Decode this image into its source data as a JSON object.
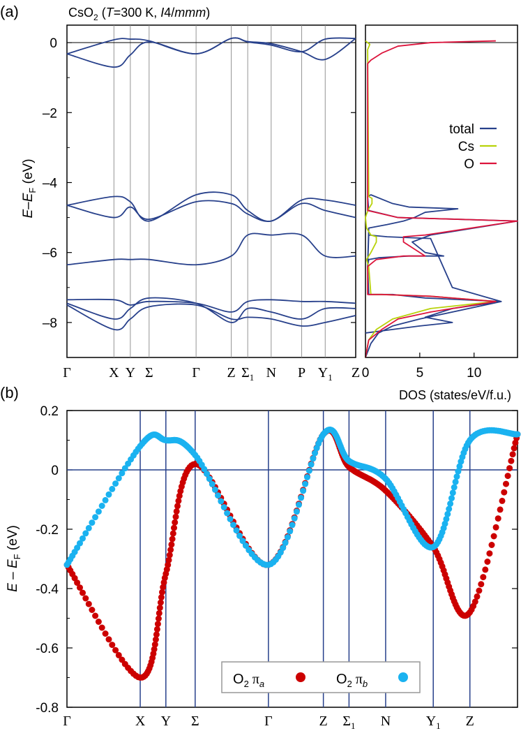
{
  "panel_a": {
    "label": "(a)",
    "title_main": "CsO",
    "title_sub": "2",
    "title_open": " (",
    "title_T": "T",
    "title_mid": "=300 K, ",
    "title_I": "I",
    "title_sg1": "4/",
    "title_sg2": "mmm",
    "title_close": ")",
    "ylabel_E": "E",
    "ylabel_minus": "–",
    "ylabel_EF": "E",
    "ylabel_F": "F",
    "ylabel_unit": " (eV)",
    "yticks": [
      "0",
      "–2",
      "–4",
      "–6",
      "–8"
    ],
    "kpoints": [
      "Γ",
      "X",
      "Y",
      "Σ",
      "Γ",
      "Z",
      "Σ",
      "N",
      "P",
      "Y",
      "Z"
    ],
    "kpoint_subs": [
      "",
      "",
      "",
      "",
      "",
      "",
      "1",
      "",
      "",
      "1",
      ""
    ],
    "dos_xlabel": "DOS (states/eV/f.u.)",
    "dos_xticks": [
      "0",
      "5",
      "10"
    ],
    "legend": [
      "total",
      "Cs",
      "O"
    ]
  },
  "panel_b": {
    "label": "(b)",
    "ylabel_E": "E",
    "ylabel_dash": " – ",
    "ylabel_EF": "E",
    "ylabel_F": "F",
    "ylabel_unit": " (eV)",
    "yticks": [
      "0.2",
      "0",
      "-0.2",
      "-0.4",
      "-0.6",
      "-0.8"
    ],
    "kpoints": [
      "Γ",
      "X",
      "Y",
      "Σ",
      "Γ",
      "Z",
      "Σ",
      "N",
      "Y",
      "Z"
    ],
    "kpoint_subs": [
      "",
      "",
      "",
      "",
      "",
      "",
      "1",
      "",
      "1",
      ""
    ],
    "legend_a_main": "O",
    "legend_a_sub": "2",
    "legend_a_greek": " π",
    "legend_a_idx": "a",
    "legend_b_main": "O",
    "legend_b_sub": "2",
    "legend_b_greek": " π",
    "legend_b_idx": "b"
  },
  "colors": {
    "band": "#27408b",
    "total": "#27408b",
    "cs": "#b8d20a",
    "o": "#dc143c",
    "pi_a": "#cc0000",
    "pi_b": "#1ab2f0",
    "grid_b": "#27408b"
  },
  "chart_data": [
    {
      "type": "line",
      "title": "CsO2 (T=300 K, I4/mmm)",
      "xlabel": "",
      "ylabel": "E–EF (eV)",
      "ylim": [
        -9,
        0.5
      ],
      "x_ticks": [
        "Γ",
        "X",
        "Y",
        "Σ",
        "Γ",
        "Z",
        "Σ1",
        "N",
        "P",
        "Y1",
        "Z"
      ],
      "k_positions": [
        0,
        1.0,
        1.35,
        1.75,
        2.75,
        3.5,
        3.85,
        4.35,
        5.0,
        5.5,
        6.15
      ],
      "series": [
        {
          "values_x": [
            0,
            1.0,
            1.35,
            1.75,
            2.75,
            3.5,
            3.85,
            4.35,
            5.0,
            5.5,
            6.15
          ],
          "values": [
            -0.32,
            -0.7,
            -0.35,
            0.02,
            -0.32,
            0.12,
            0.03,
            -0.03,
            -0.26,
            -0.48,
            0.12
          ]
        },
        {
          "values_x": [
            0,
            1.0,
            1.35,
            1.75,
            2.75,
            3.5,
            3.85,
            4.35,
            5.0,
            5.5,
            6.15
          ],
          "values": [
            -0.32,
            0.08,
            0.1,
            0.05,
            -0.32,
            0.12,
            0.02,
            -0.07,
            -0.26,
            0.1,
            0.12
          ]
        },
        {
          "values_x": [
            0,
            1.0,
            1.35,
            1.75,
            2.75,
            3.5,
            3.85,
            4.35,
            5.0,
            5.5,
            6.15
          ],
          "values": [
            -4.65,
            -4.4,
            -4.55,
            -5.1,
            -4.35,
            -4.35,
            -4.8,
            -5.1,
            -4.5,
            -4.5,
            -4.65
          ]
        },
        {
          "values_x": [
            0,
            1.0,
            1.35,
            1.75,
            2.75,
            3.5,
            3.85,
            4.35,
            5.0,
            5.5,
            6.15
          ],
          "values": [
            -4.65,
            -5.0,
            -4.7,
            -5.05,
            -4.55,
            -4.6,
            -4.9,
            -5.1,
            -4.6,
            -4.8,
            -5.0
          ]
        },
        {
          "values_x": [
            0,
            1.0,
            1.35,
            1.75,
            2.75,
            3.5,
            3.85,
            4.35,
            5.0,
            5.5,
            6.15
          ],
          "values": [
            -6.35,
            -6.2,
            -6.2,
            -6.2,
            -6.35,
            -6.1,
            -5.5,
            -5.5,
            -5.5,
            -6.1,
            -6.1
          ]
        },
        {
          "values_x": [
            0,
            1.0,
            1.35,
            1.75,
            2.75,
            3.5,
            3.85,
            4.35,
            5.0,
            5.5,
            6.15
          ],
          "values": [
            -7.35,
            -7.35,
            -7.5,
            -7.4,
            -7.45,
            -7.7,
            -7.4,
            -7.35,
            -7.4,
            -7.4,
            -7.45
          ]
        },
        {
          "values_x": [
            0,
            1.0,
            1.35,
            1.75,
            2.75,
            3.5,
            3.85,
            4.35,
            5.0,
            5.5,
            6.15
          ],
          "values": [
            -7.45,
            -7.9,
            -7.6,
            -7.3,
            -7.45,
            -8.0,
            -7.6,
            -7.7,
            -7.9,
            -7.6,
            -7.6
          ]
        },
        {
          "values_x": [
            0,
            1.0,
            1.35,
            1.75,
            2.75,
            3.5,
            3.85,
            4.35,
            5.0,
            5.5,
            6.15
          ],
          "values": [
            -7.5,
            -8.2,
            -7.9,
            -7.55,
            -7.5,
            -7.9,
            -7.85,
            -7.9,
            -8.1,
            -8.0,
            -7.8
          ]
        }
      ]
    },
    {
      "type": "line",
      "title": "",
      "xlabel": "DOS (states/eV/f.u.)",
      "ylabel": "",
      "xlim": [
        0,
        14
      ],
      "ylim": [
        -9,
        0.5
      ],
      "series": [
        {
          "name": "total",
          "x": [
            0,
            0.5,
            1.2,
            2.5,
            5.0,
            12.5,
            5.5,
            2.5,
            0.3,
            0.2,
            0.3,
            1.2,
            4.0,
            7.2,
            5.5,
            4.3,
            6.0,
            14.0,
            3.0,
            0.3,
            0.2,
            0.5,
            2.5,
            4.0,
            8.5,
            5.5,
            4.5,
            3.5,
            2.0,
            0.3,
            0.2,
            0.3,
            2.0,
            6.0,
            8.0,
            12.5,
            8.0,
            5.5,
            8.0,
            5.0,
            2.5,
            0
          ],
          "y": [
            -9,
            -8.6,
            -8.3,
            -8.1,
            -7.9,
            -7.4,
            -7.3,
            -7.2,
            -7.2,
            -6.4,
            -6.2,
            -6.15,
            -6.1,
            -6.1,
            -6.0,
            -5.7,
            -5.5,
            -5.1,
            -5.0,
            -4.8,
            -4.4,
            -4.35,
            -4.6,
            -4.7,
            -4.75,
            -4.85,
            -5.0,
            -5.1,
            -5.2,
            -5.3,
            -6.4,
            -5.5,
            -5.55,
            -5.6,
            -7.0,
            -7.4,
            -7.6,
            -7.85,
            -8.0,
            -8.1,
            -8.2,
            -8.3
          ]
        },
        {
          "name": "Cs",
          "x": [
            0,
            0.3,
            1.0,
            2.5,
            6.0,
            12.0,
            6.0,
            1.5,
            0.5,
            0.3,
            0.1,
            0.5,
            1.0,
            1.0,
            0.5,
            0.1,
            0.0,
            0.1,
            0.3,
            0.6,
            0.6,
            0.3,
            0.2,
            0.4,
            0
          ],
          "y": [
            -9,
            -8.5,
            -8.2,
            -7.9,
            -7.6,
            -7.4,
            -7.25,
            -7.2,
            -7.2,
            -6.4,
            -6.2,
            -6.0,
            -5.7,
            -5.55,
            -5.5,
            -5.3,
            -5.0,
            -4.9,
            -4.75,
            -4.6,
            -4.45,
            -4.4,
            -0.2,
            -0.05,
            0.05
          ]
        },
        {
          "name": "O",
          "x": [
            0,
            0.3,
            1.5,
            3.0,
            6.0,
            12.0,
            6.0,
            1.5,
            0.2,
            0.2,
            1.0,
            3.5,
            5.5,
            3.5,
            3.5,
            5.5,
            14.0,
            3.0,
            0.2,
            0.2,
            0.5,
            1.5,
            3.0,
            6.0,
            12.0
          ],
          "y": [
            -9,
            -8.5,
            -8.2,
            -7.9,
            -7.7,
            -7.4,
            -7.25,
            -7.2,
            -7.2,
            -6.4,
            -6.2,
            -6.1,
            -6.1,
            -5.7,
            -5.55,
            -5.5,
            -5.1,
            -5.0,
            -4.8,
            -0.6,
            -0.5,
            -0.3,
            -0.1,
            0.0,
            0.05
          ]
        }
      ]
    },
    {
      "type": "scatter",
      "title": "",
      "xlabel": "",
      "ylabel": "E – EF (eV)",
      "ylim": [
        -0.8,
        0.2
      ],
      "x_ticks": [
        "Γ",
        "X",
        "Y",
        "Σ",
        "Γ",
        "Z",
        "Σ1",
        "N",
        "",
        "Y1",
        "Z"
      ],
      "k_positions": [
        0,
        1.0,
        1.35,
        1.75,
        2.75,
        3.5,
        3.85,
        4.35,
        5.0,
        5.5,
        6.15
      ],
      "series": [
        {
          "name": "O2 πa",
          "x": [
            0,
            1.0,
            1.35,
            1.75,
            2.75,
            3.5,
            3.85,
            4.35,
            5.0,
            5.5,
            6.15
          ],
          "y": [
            -0.32,
            -0.7,
            -0.35,
            0.02,
            -0.32,
            0.12,
            0.01,
            -0.07,
            -0.26,
            -0.48,
            0.12
          ]
        },
        {
          "name": "O2 πb",
          "x": [
            0,
            1.0,
            1.35,
            1.75,
            2.75,
            3.5,
            3.85,
            4.35,
            5.0,
            5.5,
            6.15
          ],
          "y": [
            -0.32,
            0.08,
            0.1,
            0.05,
            -0.32,
            0.12,
            0.03,
            -0.03,
            -0.26,
            0.1,
            0.12
          ]
        }
      ]
    }
  ]
}
